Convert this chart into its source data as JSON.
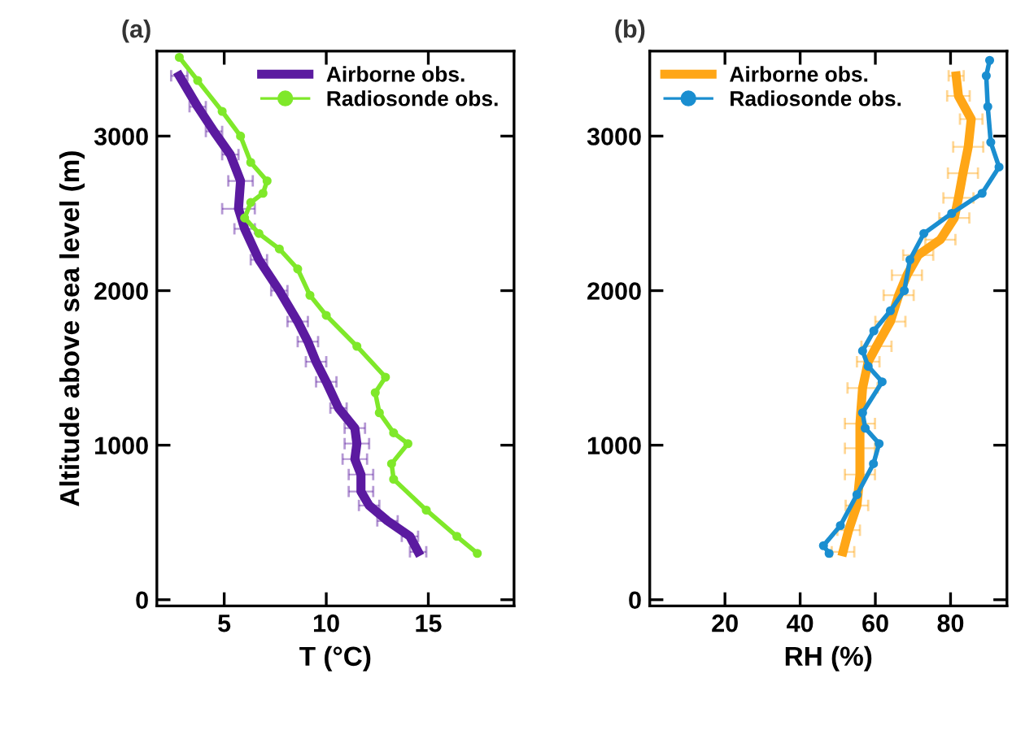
{
  "chart_data": [
    {
      "type": "line",
      "title": "(a)",
      "xlabel": "T (°C)",
      "ylabel": "Altitude above sea level (m)",
      "xlim": [
        1.7,
        19.2
      ],
      "ylim": [
        -40,
        3550
      ],
      "xticks": [
        5,
        10,
        15
      ],
      "yticks": [
        0,
        1000,
        2000,
        3000
      ],
      "grid": false,
      "legend": "top right",
      "series": [
        {
          "name": "Airborne obs.",
          "color": "#5b1aa0",
          "marker": "none",
          "x": [
            2.8,
            3.7,
            4.5,
            5.3,
            5.8,
            5.7,
            6.0,
            6.7,
            7.7,
            8.6,
            9.1,
            9.5,
            10.0,
            10.6,
            11.4,
            11.5,
            11.4,
            11.7,
            11.7,
            12.1,
            13.0,
            14.1,
            14.5
          ],
          "values": [
            3390,
            3190,
            3030,
            2880,
            2710,
            2530,
            2400,
            2200,
            2000,
            1800,
            1670,
            1540,
            1410,
            1240,
            1110,
            1010,
            910,
            810,
            700,
            610,
            510,
            410,
            310
          ],
          "xerrors": [
            0.4,
            0.4,
            0.4,
            0.4,
            0.6,
            0.8,
            0.5,
            0.4,
            0.4,
            0.5,
            0.5,
            0.5,
            0.5,
            0.4,
            0.5,
            0.6,
            0.6,
            0.6,
            0.6,
            0.5,
            0.5,
            0.4,
            0.4
          ]
        },
        {
          "name": "Radiosonde obs.",
          "color": "#7fe82a",
          "marker": "circle",
          "x": [
            2.8,
            3.7,
            4.9,
            5.8,
            6.3,
            7.1,
            6.9,
            6.3,
            6.0,
            6.7,
            7.7,
            8.6,
            9.2,
            10.0,
            11.5,
            12.9,
            12.4,
            12.6,
            13.3,
            14.0,
            13.2,
            13.3,
            14.9,
            16.4,
            17.4
          ],
          "values": [
            3510,
            3360,
            3160,
            3000,
            2830,
            2710,
            2630,
            2570,
            2470,
            2370,
            2270,
            2140,
            1970,
            1840,
            1640,
            1440,
            1340,
            1210,
            1080,
            1010,
            880,
            780,
            580,
            410,
            300
          ]
        }
      ]
    },
    {
      "type": "line",
      "title": "(b)",
      "xlabel": "RH (%)",
      "xlim": [
        0,
        95
      ],
      "ylim": [
        -40,
        3550
      ],
      "xticks": [
        20,
        40,
        60,
        80
      ],
      "yticks": [
        0,
        1000,
        2000,
        3000
      ],
      "grid": false,
      "legend": "top left",
      "series": [
        {
          "name": "Airborne obs.",
          "color": "#ffa616",
          "marker": "none",
          "x": [
            81.5,
            82.1,
            85.5,
            84.7,
            83.3,
            82.1,
            81.0,
            77.3,
            71.4,
            68.4,
            66.2,
            64.0,
            60.3,
            58.1,
            56.6,
            55.9,
            55.9,
            55.9,
            55.1,
            52.9,
            51.4
          ],
          "values": [
            3390,
            3260,
            3110,
            2930,
            2760,
            2600,
            2470,
            2330,
            2230,
            2100,
            1970,
            1800,
            1640,
            1540,
            1370,
            1140,
            980,
            810,
            610,
            450,
            310
          ],
          "xerrors": [
            2,
            3,
            3,
            4,
            4,
            4,
            4,
            4,
            4,
            4,
            4,
            4,
            4,
            3,
            4,
            4,
            4,
            4,
            3,
            3,
            3
          ]
        },
        {
          "name": "Radiosonde obs.",
          "color": "#1a8ed0",
          "marker": "circle",
          "x": [
            90.4,
            89.5,
            89.9,
            90.7,
            92.9,
            88.4,
            80.3,
            72.9,
            69.2,
            67.7,
            64.0,
            59.6,
            56.6,
            58.1,
            61.8,
            56.6,
            57.3,
            61.0,
            59.5,
            55.1,
            50.7,
            46.2,
            47.7
          ],
          "values": [
            3490,
            3390,
            3190,
            2960,
            2800,
            2630,
            2500,
            2370,
            2200,
            2000,
            1870,
            1740,
            1610,
            1510,
            1410,
            1210,
            1110,
            1010,
            880,
            680,
            480,
            350,
            300
          ]
        }
      ]
    }
  ]
}
